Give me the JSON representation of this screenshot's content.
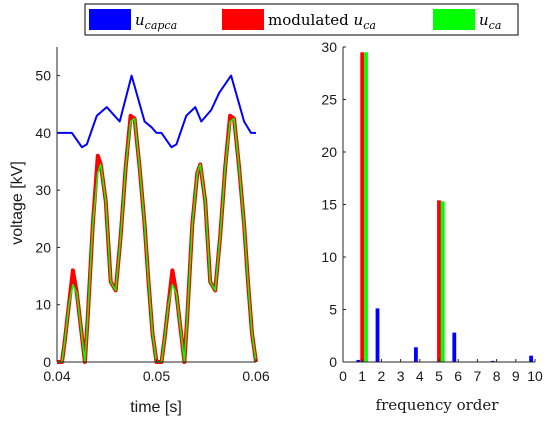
{
  "legend": {
    "items": [
      {
        "label_main": "u",
        "label_sub": "capca",
        "color": "#0000ff"
      },
      {
        "label_prefix": "modulated ",
        "label_main": "u",
        "label_sub": "ca",
        "color": "#ff0000"
      },
      {
        "label_main": "u",
        "label_sub": "ca",
        "color": "#00ff00"
      }
    ]
  },
  "colors": {
    "ucapca": "#0000ff",
    "modulated": "#ff0000",
    "uca": "#00ff00",
    "overlap_line": "#8a6a10"
  },
  "chart_data": [
    {
      "type": "line",
      "xlabel": "time [s]",
      "ylabel": "voltage [kV]",
      "xlim": [
        0.04,
        0.06
      ],
      "ylim": [
        0,
        55
      ],
      "xticks": [
        0.04,
        0.05,
        0.06
      ],
      "xtick_labels": [
        "0.04",
        "0.05",
        "0.06"
      ],
      "yticks": [
        0,
        10,
        20,
        30,
        40,
        50
      ],
      "ytick_labels": [
        "0",
        "10",
        "20",
        "30",
        "40",
        "50"
      ],
      "grid": false,
      "series": [
        {
          "key": "ucapca",
          "color": "#0000ff",
          "x": [
            0.04,
            0.0415,
            0.0425,
            0.043,
            0.044,
            0.045,
            0.0463,
            0.0475,
            0.0488,
            0.0495,
            0.05,
            0.0505,
            0.0515,
            0.052,
            0.053,
            0.0539,
            0.0545,
            0.0555,
            0.0563,
            0.0575,
            0.0588,
            0.0595,
            0.06
          ],
          "y": [
            40,
            40,
            37.5,
            38,
            43,
            44.5,
            42,
            50,
            42,
            41,
            40,
            40,
            37.5,
            38,
            43,
            44.5,
            42,
            44,
            47,
            50,
            42,
            40,
            40
          ]
        },
        {
          "key": "uca",
          "color": "#00ff00",
          "x": [
            0.04,
            0.0405,
            0.0408,
            0.0412,
            0.0416,
            0.042,
            0.0424,
            0.0428,
            0.0431,
            0.0436,
            0.0441,
            0.0444,
            0.0449,
            0.0454,
            0.0459,
            0.0464,
            0.0469,
            0.0474,
            0.0478,
            0.0483,
            0.0488,
            0.0492,
            0.0496,
            0.05,
            0.0505,
            0.0508,
            0.0512,
            0.0516,
            0.052,
            0.0524,
            0.0528,
            0.0531,
            0.0536,
            0.0541,
            0.0544,
            0.0549,
            0.0554,
            0.0559,
            0.0564,
            0.0569,
            0.0574,
            0.0578,
            0.0583,
            0.0588,
            0.0592,
            0.0596,
            0.06
          ],
          "y": [
            0,
            0,
            4,
            10,
            13.5,
            12,
            6,
            0,
            8,
            24,
            33,
            34.5,
            28,
            14,
            12.5,
            22,
            34,
            42,
            42.5,
            34,
            24,
            14,
            5,
            0,
            0,
            4,
            10,
            13.5,
            12,
            6,
            0,
            8,
            24,
            33,
            34.5,
            28,
            14,
            12.5,
            22,
            34,
            42,
            42.5,
            34,
            24,
            14,
            5,
            0
          ]
        },
        {
          "key": "modulated",
          "color": "#ff0000",
          "x": [
            0.04,
            0.0405,
            0.0408,
            0.0412,
            0.0416,
            0.042,
            0.0424,
            0.0428,
            0.0431,
            0.0436,
            0.0441,
            0.0444,
            0.0449,
            0.0454,
            0.0459,
            0.0464,
            0.0469,
            0.0474,
            0.0478,
            0.0483,
            0.0488,
            0.0492,
            0.0496,
            0.05,
            0.0505,
            0.0508,
            0.0512,
            0.0516,
            0.052,
            0.0524,
            0.0528,
            0.0531,
            0.0536,
            0.0541,
            0.0544,
            0.0549,
            0.0554,
            0.0559,
            0.0564,
            0.0569,
            0.0574,
            0.0578,
            0.0583,
            0.0588,
            0.0592,
            0.0596,
            0.06
          ],
          "y": [
            0,
            0,
            4,
            10,
            16,
            12,
            6,
            0,
            8,
            24,
            36,
            34.5,
            28,
            14,
            12.5,
            22,
            34,
            43,
            42.5,
            34,
            24,
            14,
            5,
            0,
            0,
            4,
            10,
            16,
            12,
            6,
            0,
            8,
            24,
            33,
            34.5,
            28,
            14,
            12.5,
            22,
            34,
            43,
            42.5,
            34,
            24,
            14,
            5,
            0
          ]
        }
      ]
    },
    {
      "type": "bar",
      "xlabel": "frequency order",
      "ylabel": "",
      "xlim": [
        0,
        10
      ],
      "ylim": [
        0,
        30
      ],
      "xticks": [
        0,
        1,
        2,
        3,
        4,
        5,
        6,
        7,
        8,
        9,
        10
      ],
      "xtick_labels": [
        "0",
        "1",
        "2",
        "3",
        "4",
        "5",
        "6",
        "7",
        "8",
        "9",
        "10"
      ],
      "yticks": [
        0,
        5,
        10,
        15,
        20,
        25,
        30
      ],
      "ytick_labels": [
        "0",
        "5",
        "10",
        "15",
        "20",
        "25",
        "30"
      ],
      "grid": false,
      "bar_width": 0.2,
      "series": [
        {
          "key": "ucapca",
          "color": "#0000ff",
          "offset": -0.3,
          "x": [
            1,
            2,
            4,
            6,
            8,
            10
          ],
          "values": [
            0.2,
            5.1,
            1.4,
            2.8,
            0.1,
            0.6
          ]
        },
        {
          "key": "modulated",
          "color": "#ff0000",
          "offset": -0.1,
          "x": [
            1,
            5
          ],
          "values": [
            29.5,
            15.4
          ]
        },
        {
          "key": "uca",
          "color": "#00ff00",
          "offset": 0.1,
          "x": [
            1,
            5
          ],
          "values": [
            29.5,
            15.3
          ]
        }
      ]
    }
  ]
}
